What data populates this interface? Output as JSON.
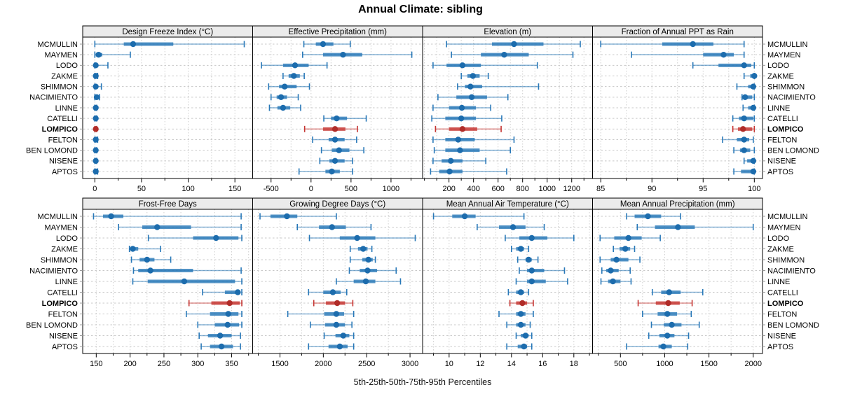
{
  "title": "Annual Climate: sibling",
  "footer": "5th-25th-50th-75th-95th Percentiles",
  "chart_data": {
    "type": "scatter",
    "style": "percentile-dot-whisker-trellis",
    "title": "Annual Climate: sibling",
    "xlabel": "5th-25th-50th-75th-95th Percentiles",
    "percentiles": [
      5,
      25,
      50,
      75,
      95
    ],
    "grid": "dotted",
    "sites": [
      "MCMULLIN",
      "MAYMEN",
      "LODO",
      "ZAKME",
      "SHIMMON",
      "NACIMIENTO",
      "LINNE",
      "CATELLI",
      "LOMPICO",
      "FELTON",
      "BEN LOMOND",
      "NISENE",
      "APTOS"
    ],
    "highlight_site": "LOMPICO",
    "colors": {
      "normal": {
        "whisker": "#2878b8",
        "band": "#2878b8",
        "median": "#1c6cad"
      },
      "highlight": {
        "whisker": "#c53431",
        "band": "#c53431",
        "median": "#b02c28"
      },
      "header_bg": "#ebebeb",
      "gridline": "#cfcfcf",
      "frame": "#000000"
    },
    "panels": [
      {
        "title": "Design Freeze Index (°C)",
        "ticks": [
          0,
          50,
          100,
          150
        ],
        "xlim": [
          -13,
          169
        ],
        "values": [
          [
            0,
            31,
            41,
            84,
            160
          ],
          [
            0,
            1,
            4,
            8,
            38
          ],
          [
            0,
            0,
            1,
            3,
            14
          ],
          [
            0,
            0,
            1,
            1,
            3
          ],
          [
            0,
            0,
            1,
            2,
            7
          ],
          [
            0,
            1,
            2,
            3,
            5
          ],
          [
            0,
            0,
            1,
            1,
            2
          ],
          [
            0,
            0,
            1,
            1,
            2
          ],
          [
            0,
            0,
            1,
            1,
            2
          ],
          [
            0,
            0,
            1,
            1,
            3
          ],
          [
            0,
            0,
            1,
            1,
            2
          ],
          [
            0,
            0,
            1,
            1,
            2
          ],
          [
            0,
            0,
            1,
            1,
            3
          ]
        ]
      },
      {
        "title": "Effective Precipitation (mm)",
        "ticks": [
          -500,
          0,
          500,
          1000
        ],
        "xlim": [
          -730,
          1395
        ],
        "values": [
          [
            -90,
            60,
            150,
            280,
            490
          ],
          [
            -105,
            150,
            400,
            640,
            1260
          ],
          [
            -620,
            -350,
            -200,
            -30,
            200
          ],
          [
            -350,
            -280,
            -215,
            -140,
            -85
          ],
          [
            -530,
            -400,
            -330,
            -180,
            -20
          ],
          [
            -500,
            -430,
            -375,
            -300,
            -160
          ],
          [
            -520,
            -420,
            -350,
            -260,
            -130
          ],
          [
            160,
            250,
            320,
            450,
            690
          ],
          [
            -80,
            150,
            300,
            430,
            580
          ],
          [
            20,
            220,
            300,
            420,
            570
          ],
          [
            130,
            260,
            350,
            480,
            660
          ],
          [
            110,
            230,
            300,
            420,
            520
          ],
          [
            -150,
            180,
            260,
            360,
            520
          ]
        ]
      },
      {
        "title": "Elevation (m)",
        "ticks": [
          200,
          400,
          600,
          800,
          1000,
          1200
        ],
        "xlim": [
          -15,
          1370
        ],
        "values": [
          [
            180,
            550,
            730,
            970,
            1270
          ],
          [
            220,
            460,
            650,
            850,
            1210
          ],
          [
            70,
            180,
            310,
            460,
            920
          ],
          [
            300,
            350,
            395,
            450,
            520
          ],
          [
            270,
            330,
            375,
            470,
            930
          ],
          [
            110,
            260,
            385,
            510,
            680
          ],
          [
            70,
            200,
            305,
            420,
            540
          ],
          [
            60,
            170,
            300,
            420,
            630
          ],
          [
            90,
            200,
            310,
            430,
            625
          ],
          [
            70,
            170,
            275,
            410,
            730
          ],
          [
            80,
            170,
            290,
            450,
            700
          ],
          [
            70,
            140,
            215,
            310,
            500
          ],
          [
            50,
            120,
            205,
            310,
            670
          ]
        ]
      },
      {
        "title": "Fraction of Annual PPT as Rain",
        "ticks": [
          85,
          90,
          95,
          100
        ],
        "xlim": [
          84.2,
          100.8
        ],
        "values": [
          [
            85,
            91,
            94,
            96,
            99
          ],
          [
            88,
            95,
            97,
            98,
            99
          ],
          [
            94,
            96.5,
            99,
            99.7,
            100
          ],
          [
            99,
            99.6,
            100,
            100,
            100
          ],
          [
            98.3,
            99.4,
            99.9,
            100,
            100
          ],
          [
            98.8,
            98.9,
            99.1,
            99.8,
            100
          ],
          [
            98.9,
            99.4,
            99.9,
            100,
            100
          ],
          [
            97.9,
            98.5,
            99,
            99.9,
            100
          ],
          [
            97.9,
            98.4,
            98.9,
            99.8,
            100
          ],
          [
            96.9,
            98.3,
            99,
            99.5,
            99.9
          ],
          [
            98,
            98.6,
            99,
            99.6,
            100
          ],
          [
            99,
            99.3,
            99.9,
            100,
            100
          ],
          [
            98,
            98.7,
            99.9,
            100,
            100
          ]
        ]
      },
      {
        "title": "Frost-Free Days",
        "ticks": [
          150,
          200,
          250,
          300,
          350
        ],
        "xlim": [
          130,
          381
        ],
        "values": [
          [
            146,
            160,
            172,
            190,
            364
          ],
          [
            183,
            218,
            240,
            290,
            364
          ],
          [
            227,
            293,
            327,
            360,
            365
          ],
          [
            199,
            201,
            204,
            212,
            245
          ],
          [
            202,
            214,
            225,
            236,
            260
          ],
          [
            205,
            212,
            230,
            293,
            364
          ],
          [
            204,
            226,
            280,
            355,
            365
          ],
          [
            307,
            340,
            359,
            363,
            365
          ],
          [
            287,
            320,
            347,
            362,
            365
          ],
          [
            283,
            318,
            345,
            360,
            365
          ],
          [
            300,
            325,
            344,
            361,
            365
          ],
          [
            302,
            315,
            333,
            350,
            363
          ],
          [
            305,
            318,
            335,
            352,
            363
          ]
        ]
      },
      {
        "title": "Growing Degree Days (°C)",
        "ticks": [
          1500,
          2000,
          2500,
          3000
        ],
        "xlim": [
          1185,
          3145
        ],
        "values": [
          [
            1270,
            1390,
            1580,
            1700,
            2150
          ],
          [
            1700,
            1950,
            2100,
            2260,
            2550
          ],
          [
            1840,
            2190,
            2390,
            2600,
            3060
          ],
          [
            2310,
            2400,
            2460,
            2510,
            2560
          ],
          [
            2310,
            2450,
            2520,
            2570,
            2600
          ],
          [
            2300,
            2420,
            2510,
            2620,
            2840
          ],
          [
            2150,
            2350,
            2490,
            2600,
            2890
          ],
          [
            1830,
            2000,
            2110,
            2200,
            2270
          ],
          [
            1890,
            2030,
            2160,
            2250,
            2340
          ],
          [
            1590,
            2010,
            2150,
            2240,
            2350
          ],
          [
            1850,
            2020,
            2150,
            2250,
            2330
          ],
          [
            2010,
            2140,
            2230,
            2300,
            2350
          ],
          [
            1830,
            2060,
            2190,
            2280,
            2350
          ]
        ]
      },
      {
        "title": "Mean Annual Air Temperature (°C)",
        "ticks": [
          10,
          12,
          14,
          16,
          18
        ],
        "xlim": [
          8.3,
          19.2
        ],
        "values": [
          [
            9.0,
            10.2,
            11.0,
            11.7,
            14.8
          ],
          [
            11.8,
            13.2,
            14.1,
            14.9,
            16.1
          ],
          [
            13.6,
            14.5,
            15.3,
            16.3,
            18.0
          ],
          [
            14.0,
            14.3,
            14.6,
            14.8,
            15.1
          ],
          [
            14.4,
            14.9,
            15.1,
            15.3,
            15.7
          ],
          [
            14.5,
            15.0,
            15.3,
            16.1,
            17.4
          ],
          [
            14.3,
            15.0,
            15.3,
            16.2,
            17.6
          ],
          [
            13.8,
            14.3,
            14.6,
            14.8,
            15.1
          ],
          [
            13.9,
            14.3,
            14.7,
            15.0,
            15.4
          ],
          [
            13.2,
            14.3,
            14.6,
            14.9,
            15.4
          ],
          [
            13.7,
            14.3,
            14.6,
            14.9,
            15.2
          ],
          [
            14.3,
            14.6,
            14.9,
            15.1,
            15.3
          ],
          [
            13.7,
            14.4,
            14.8,
            15.0,
            15.3
          ]
        ]
      },
      {
        "title": "Mean Annual Precipitation (mm)",
        "ticks": [
          500,
          1000,
          1500,
          2000
        ],
        "xlim": [
          185,
          2105
        ],
        "values": [
          [
            570,
            660,
            810,
            960,
            1180
          ],
          [
            690,
            890,
            1150,
            1340,
            2000
          ],
          [
            270,
            430,
            590,
            740,
            950
          ],
          [
            420,
            490,
            555,
            610,
            660
          ],
          [
            270,
            390,
            455,
            590,
            720
          ],
          [
            290,
            340,
            390,
            480,
            610
          ],
          [
            280,
            360,
            415,
            500,
            620
          ],
          [
            860,
            960,
            1050,
            1180,
            1430
          ],
          [
            700,
            900,
            1040,
            1170,
            1310
          ],
          [
            750,
            920,
            1030,
            1140,
            1300
          ],
          [
            850,
            990,
            1080,
            1190,
            1390
          ],
          [
            820,
            940,
            1030,
            1110,
            1270
          ],
          [
            570,
            930,
            985,
            1080,
            1260
          ]
        ]
      }
    ]
  }
}
